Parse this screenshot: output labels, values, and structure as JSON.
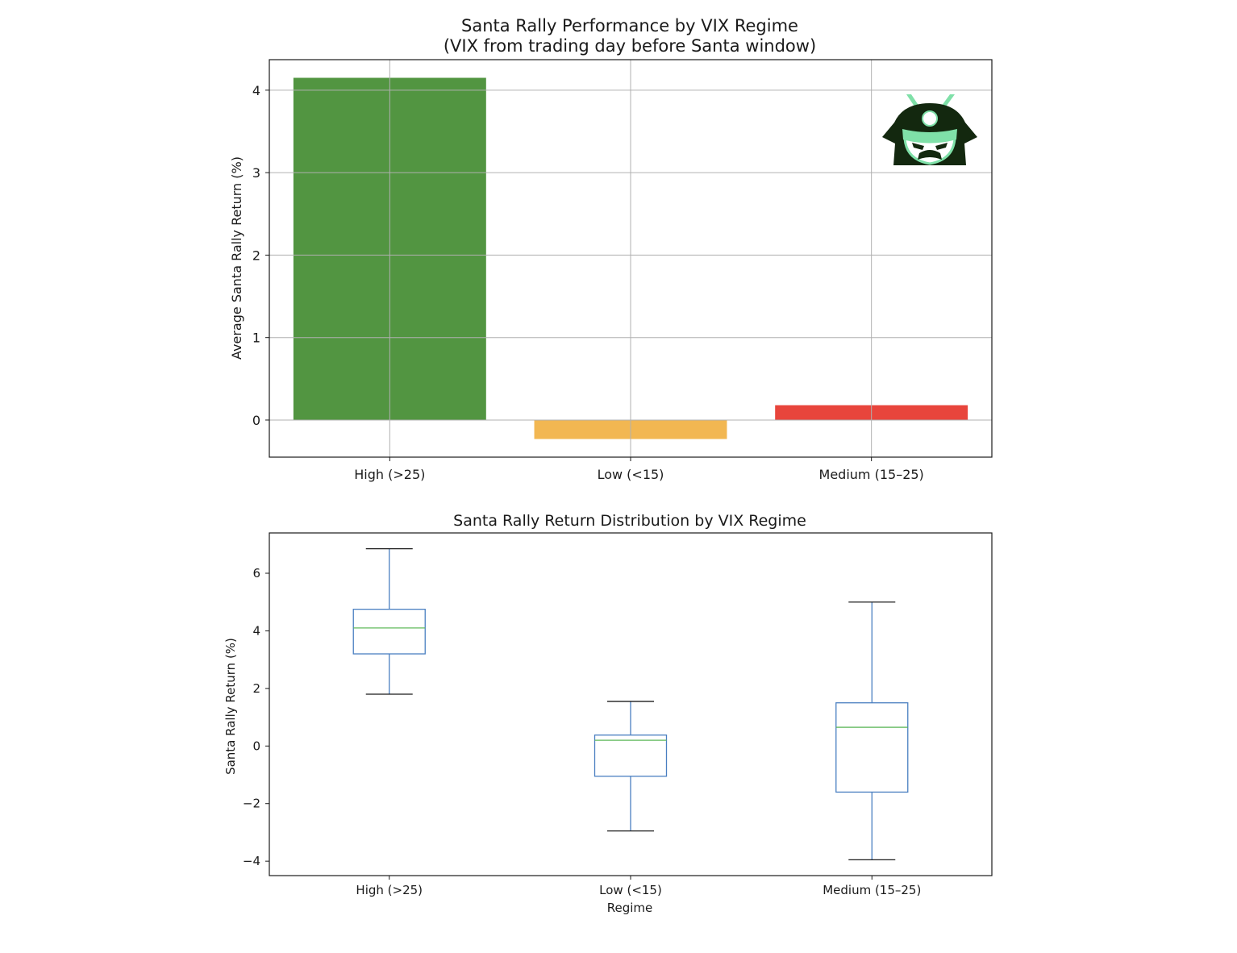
{
  "chart_data": [
    {
      "type": "bar",
      "title": "Santa Rally Performance by VIX Regime",
      "subtitle": "(VIX from trading day before Santa window)",
      "xlabel": "",
      "ylabel": "Average Santa Rally Return (%)",
      "categories": [
        "High (>25)",
        "Low (<15)",
        "Medium (15–25)"
      ],
      "values": [
        4.15,
        -0.23,
        0.18
      ],
      "colors": [
        "#529541",
        "#f2b752",
        "#e8453c"
      ],
      "ylim": [
        -0.45,
        4.37
      ],
      "yticks": [
        0,
        1,
        2,
        3,
        4
      ],
      "grid": true,
      "logo": "samurai-helmet-logo"
    },
    {
      "type": "box",
      "title": "Santa Rally Return Distribution by VIX Regime",
      "xlabel": "Regime",
      "ylabel": "Santa Rally Return (%)",
      "categories": [
        "High (>25)",
        "Low (<15)",
        "Medium (15–25)"
      ],
      "boxes": [
        {
          "whisker_low": 1.8,
          "q1": 3.2,
          "median": 4.1,
          "q3": 4.75,
          "whisker_high": 6.85
        },
        {
          "whisker_low": -2.95,
          "q1": -1.05,
          "median": 0.2,
          "q3": 0.38,
          "whisker_high": 1.55
        },
        {
          "whisker_low": -3.95,
          "q1": -1.6,
          "median": 0.65,
          "q3": 1.5,
          "whisker_high": 5.0
        }
      ],
      "ylim": [
        -4.5,
        7.4
      ],
      "yticks": [
        -4,
        -2,
        0,
        2,
        4,
        6
      ],
      "box_color": "#4a7fc1",
      "median_color": "#5fb85a",
      "cap_color": "#1a1a1a",
      "grid": false
    }
  ]
}
